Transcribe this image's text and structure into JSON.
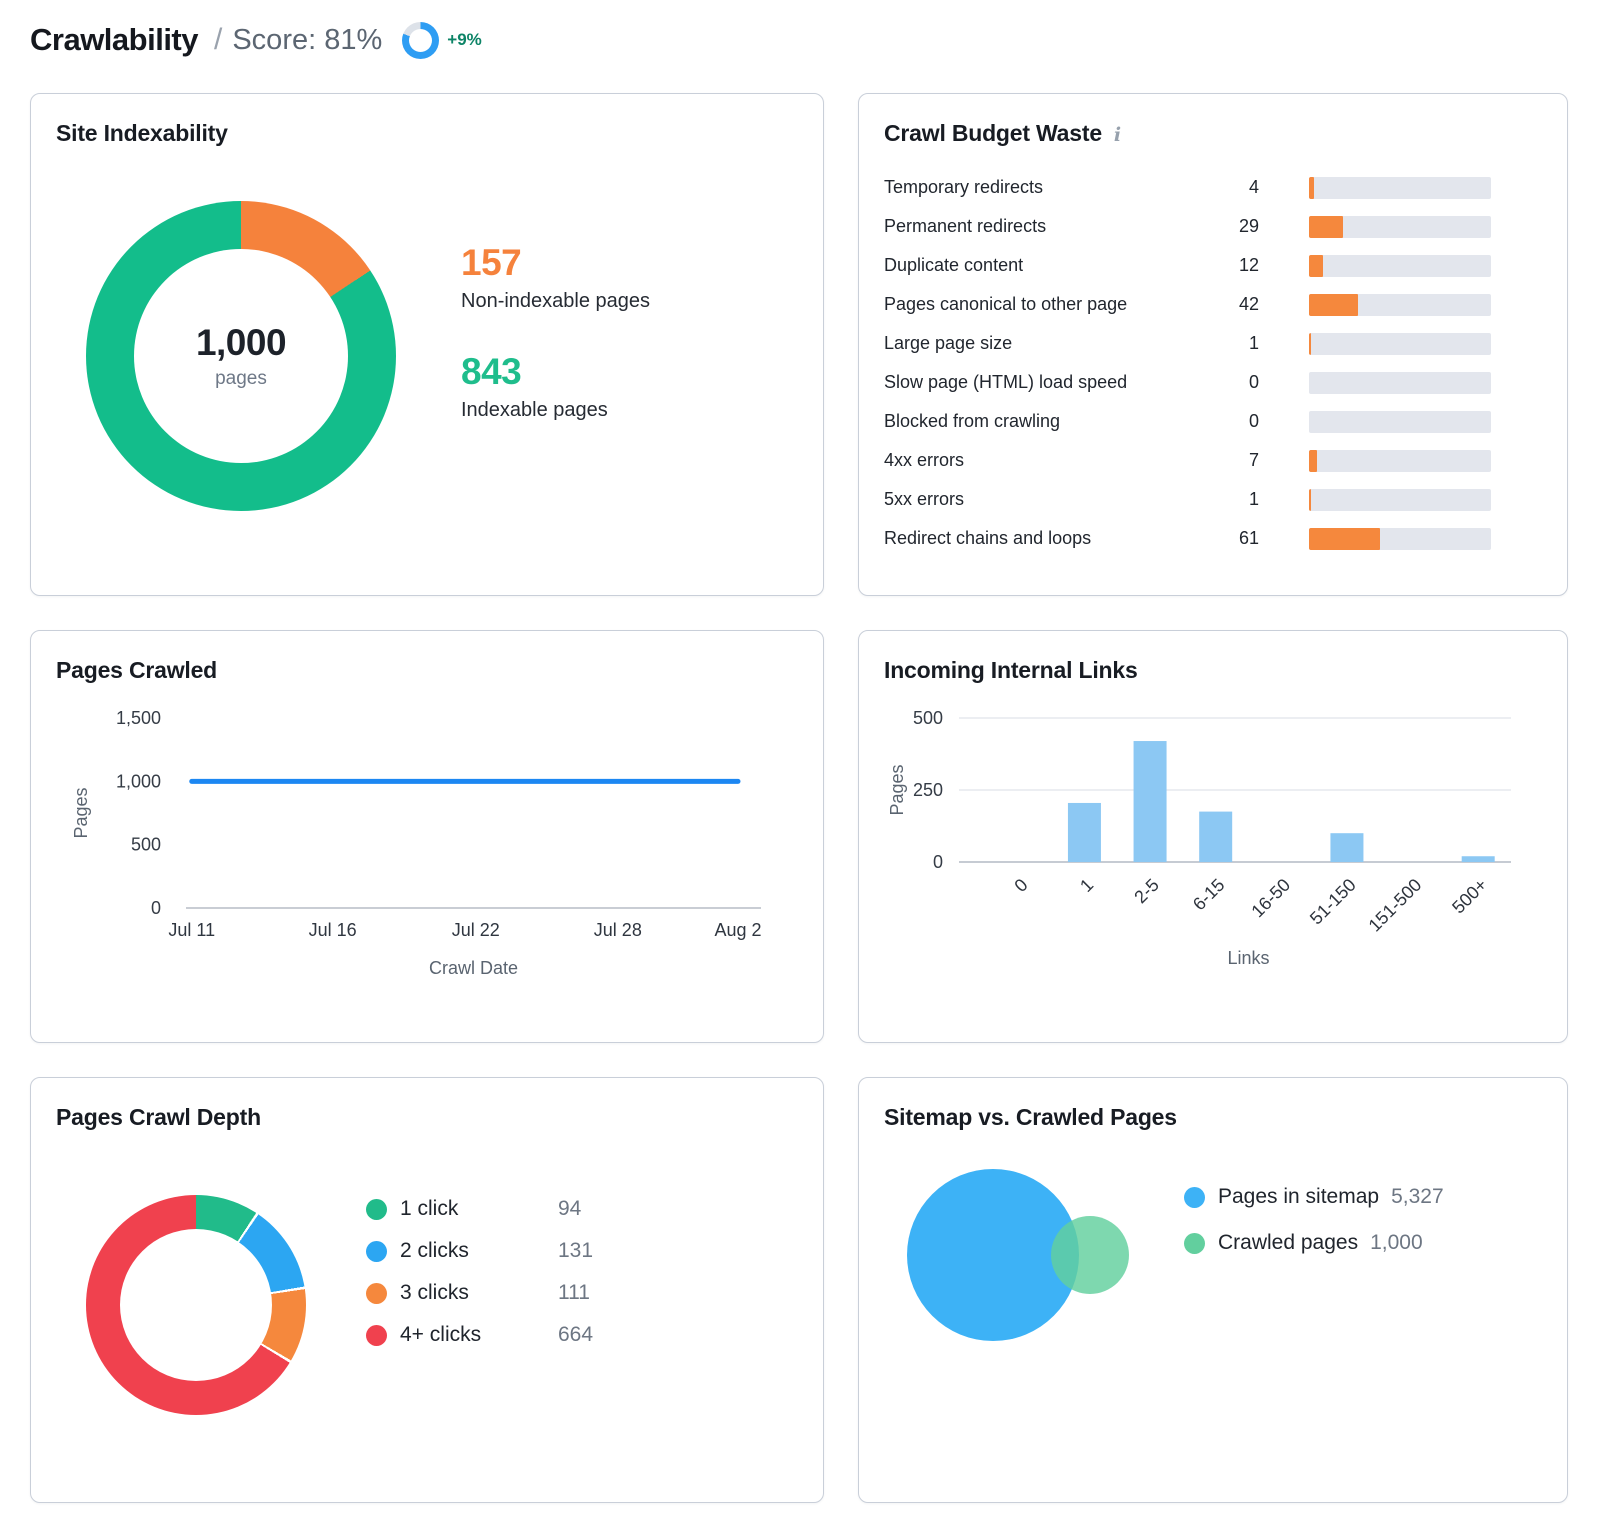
{
  "header": {
    "title": "Crawlability",
    "separator": "/",
    "score_label": "Score: 81%",
    "score_percent": 81,
    "score_ring_color": "#2e9df3",
    "score_ring_track": "#dde2e9",
    "delta": "+9%",
    "delta_color": "#0d8467"
  },
  "cards": {
    "site_indexability": {
      "title": "Site Indexability",
      "center_total": "1,000",
      "center_unit": "pages",
      "stats": [
        {
          "value": "157",
          "label": "Non-indexable pages",
          "color": "#f5823c"
        },
        {
          "value": "843",
          "label": "Indexable pages",
          "color": "#1fbd8c"
        }
      ]
    },
    "crawl_budget": {
      "title": "Crawl Budget Waste",
      "info_icon": "i"
    },
    "pages_crawled": {
      "title": "Pages Crawled"
    },
    "incoming_links": {
      "title": "Incoming Internal Links"
    },
    "crawl_depth": {
      "title": "Pages Crawl Depth"
    },
    "sitemap_venn": {
      "title": "Sitemap vs. Crawled Pages",
      "legend": [
        {
          "label": "Pages in sitemap",
          "value": "5,327",
          "color": "#3db2f6"
        },
        {
          "label": "Crawled pages",
          "value": "1,000",
          "color": "#62cf9e"
        }
      ]
    }
  },
  "chart_data": [
    {
      "type": "pie",
      "subtype": "donut",
      "title": "Site Indexability",
      "center_label": "1,000 pages",
      "start_angle": "top",
      "direction": "clockwise",
      "slices": [
        {
          "label": "Non-indexable pages",
          "value": 157,
          "color": "#f5823c"
        },
        {
          "label": "Indexable pages",
          "value": 843,
          "color": "#13bd8b"
        }
      ]
    },
    {
      "type": "bar",
      "subtype": "horizontal-progress",
      "title": "Crawl Budget Waste",
      "xmax": 157,
      "bar_color": "#f5883d",
      "track_color": "#e3e6ed",
      "categories": [
        "Temporary redirects",
        "Permanent redirects",
        "Duplicate content",
        "Pages canonical to other page",
        "Large page size",
        "Slow page (HTML) load speed",
        "Blocked from crawling",
        "4xx errors",
        "5xx errors",
        "Redirect chains and loops"
      ],
      "values": [
        4,
        29,
        12,
        42,
        1,
        0,
        0,
        7,
        1,
        61
      ]
    },
    {
      "type": "line",
      "title": "Pages Crawled",
      "xlabel": "Crawl Date",
      "ylabel": "Pages",
      "ylim": [
        0,
        1500
      ],
      "yticks": [
        {
          "v": 0,
          "label": "0"
        },
        {
          "v": 500,
          "label": "500"
        },
        {
          "v": 1000,
          "label": "1,000"
        },
        {
          "v": 1500,
          "label": "1,500"
        }
      ],
      "x": [
        "Jul 11",
        "Jul 16",
        "Jul 22",
        "Jul 28",
        "Aug 2"
      ],
      "series": [
        {
          "name": "Pages crawled",
          "values": [
            1000,
            1000,
            1000,
            1000,
            1000
          ],
          "color": "#1c87f2"
        }
      ],
      "grid": "baseline-only"
    },
    {
      "type": "bar",
      "title": "Incoming Internal Links",
      "xlabel": "Links",
      "ylabel": "Pages",
      "ylim": [
        0,
        500
      ],
      "yticks": [
        {
          "v": 0,
          "label": "0"
        },
        {
          "v": 250,
          "label": "250"
        },
        {
          "v": 500,
          "label": "500"
        }
      ],
      "categories": [
        "0",
        "1",
        "2-5",
        "6-15",
        "16-50",
        "51-150",
        "151-500",
        "500+"
      ],
      "values": [
        0,
        205,
        420,
        175,
        0,
        100,
        0,
        20
      ],
      "bar_color": "#8cc8f3",
      "grid": "horizontal"
    },
    {
      "type": "pie",
      "subtype": "donut",
      "title": "Pages Crawl Depth",
      "start_angle": "top",
      "direction": "clockwise",
      "slices": [
        {
          "label": "1 click",
          "value": 94,
          "display": "94",
          "color": "#21bb8a"
        },
        {
          "label": "2 clicks",
          "value": 131,
          "display": "131",
          "color": "#2ca6f2"
        },
        {
          "label": "3 clicks",
          "value": 111,
          "display": "111",
          "color": "#f5883d"
        },
        {
          "label": "4+ clicks",
          "value": 664,
          "display": "664",
          "color": "#f0414e"
        }
      ]
    },
    {
      "type": "venn",
      "title": "Sitemap vs. Crawled Pages",
      "sets": [
        {
          "label": "Pages in sitemap",
          "value": 5327,
          "color": "#3db2f6"
        },
        {
          "label": "Crawled pages",
          "value": 1000,
          "color": "#62cf9e"
        }
      ]
    }
  ]
}
